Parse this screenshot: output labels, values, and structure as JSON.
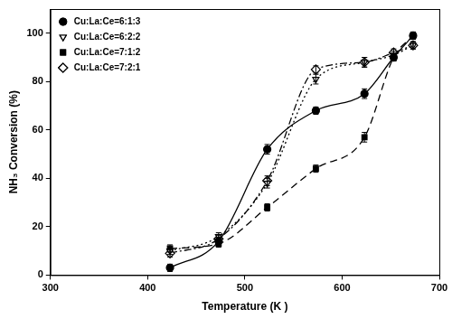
{
  "chart_data": {
    "type": "line",
    "xlabel": "Temperature (K )",
    "ylabel": "NH₃ Conversion (%)",
    "x": [
      423,
      473,
      523,
      573,
      623,
      653,
      673
    ],
    "series": [
      {
        "name": "Cu:La:Ce=6:1:3",
        "color": "#000000",
        "marker": "circle",
        "line_style": "solid",
        "values": [
          3,
          14,
          52,
          68,
          75,
          90,
          99
        ],
        "errors": [
          1.5,
          1.5,
          2,
          1.5,
          2,
          1.5,
          1.5
        ]
      },
      {
        "name": "Cu:La:Ce=6:2:2",
        "color": "#000000",
        "marker": "triangle-down-open",
        "line_style": "dotted",
        "values": [
          10,
          16,
          38,
          81,
          88,
          91,
          95
        ],
        "errors": [
          1.5,
          1.5,
          2,
          2,
          2,
          1.5,
          1.5
        ]
      },
      {
        "name": "Cu:La:Ce=7:1:2",
        "color": "#000000",
        "marker": "square",
        "line_style": "dashed",
        "values": [
          11,
          13,
          28,
          44,
          57,
          90,
          99
        ],
        "errors": [
          1.5,
          1.5,
          1.5,
          1.5,
          2,
          1.5,
          1.5
        ]
      },
      {
        "name": "Cu:La:Ce=7:2:1",
        "color": "#000000",
        "marker": "diamond-open",
        "line_style": "dashdot",
        "values": [
          9,
          15,
          39,
          85,
          88,
          92,
          95
        ],
        "errors": [
          1.5,
          1.5,
          2,
          1.5,
          2,
          1.5,
          1.5
        ]
      }
    ],
    "xlim": [
      300,
      700
    ],
    "xticks": [
      300,
      400,
      500,
      600,
      700
    ],
    "ylim": [
      0,
      110
    ],
    "yticks": [
      0,
      20,
      40,
      60,
      80,
      100
    ],
    "grid": false,
    "legend": "upper left"
  }
}
